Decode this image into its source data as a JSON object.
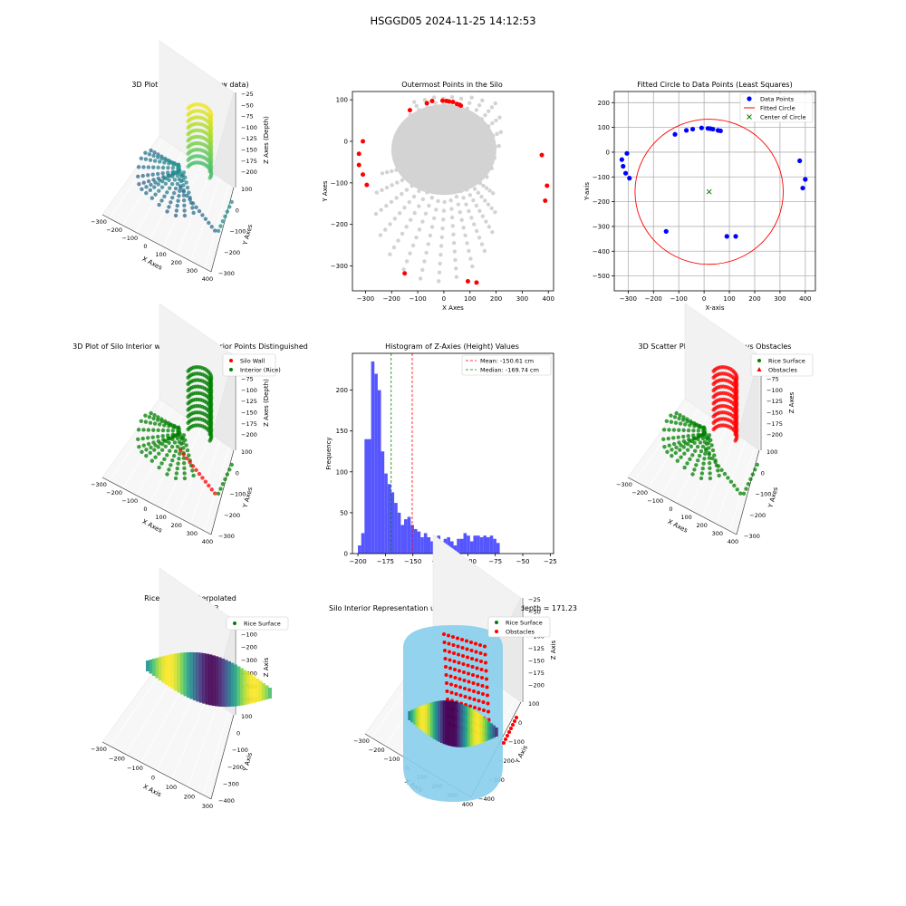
{
  "suptitle": "HSGGD05 2024-11-25 14:12:53",
  "colors": {
    "blue": "#0000ff",
    "red": "#ff0000",
    "green": "#008000",
    "gray": "#d3d3d3",
    "hist_blue": "#4d4dff",
    "sky": "#87ceeb"
  },
  "chart_data": [
    {
      "type": "scatter3d",
      "title": "3D Plot of Silo Interior(row data)",
      "xlabel": "X Axes",
      "ylabel": "Y Axes",
      "zlabel": "Z Axes (Depth)",
      "xticks": [
        "−300",
        "−200",
        "−100",
        "0",
        "100",
        "200",
        "300",
        "400"
      ],
      "yticks": [
        "100",
        "0",
        "−100",
        "−200",
        "−300"
      ],
      "zticks": [
        "−25",
        "−50",
        "−75",
        "−100",
        "−125",
        "−150",
        "−175",
        "−200"
      ],
      "colormap": "viridis",
      "legend": []
    },
    {
      "type": "scatter",
      "title": "Outermost Points in the Silo",
      "xlabel": "X Axes",
      "ylabel": "Y Axes",
      "xlim": [
        -350,
        420
      ],
      "ylim": [
        -360,
        120
      ],
      "xticks": [
        -300,
        -200,
        -100,
        0,
        100,
        200,
        300,
        400
      ],
      "yticks": [
        100,
        0,
        -100,
        -200,
        -300
      ],
      "outer_points": [
        [
          -130,
          75
        ],
        [
          -65,
          92
        ],
        [
          -45,
          97
        ],
        [
          -5,
          98
        ],
        [
          10,
          97
        ],
        [
          20,
          96
        ],
        [
          35,
          95
        ],
        [
          50,
          90
        ],
        [
          60,
          88
        ],
        [
          65,
          86
        ],
        [
          -310,
          0
        ],
        [
          -325,
          -30
        ],
        [
          -325,
          -57
        ],
        [
          -310,
          -80
        ],
        [
          -295,
          -105
        ],
        [
          -150,
          -318
        ],
        [
          92,
          -337
        ],
        [
          125,
          -340
        ],
        [
          375,
          -33
        ],
        [
          395,
          -107
        ],
        [
          388,
          -143
        ]
      ]
    },
    {
      "type": "scatter",
      "title": "Fitted Circle to Data Points (Least Squares)",
      "xlabel": "X-axis",
      "ylabel": "Y-axis",
      "xlim": [
        -355,
        440
      ],
      "ylim": [
        -560,
        245
      ],
      "xticks": [
        -300,
        -200,
        -100,
        0,
        100,
        200,
        300,
        400
      ],
      "yticks": [
        200,
        100,
        0,
        -100,
        -200,
        -300,
        -400,
        -500
      ],
      "grid": true,
      "legend": [
        "Data Points",
        "Fitted Circle",
        "Center of Circle"
      ],
      "legend_position": "top-right",
      "data_points": [
        [
          -115,
          72
        ],
        [
          -70,
          88
        ],
        [
          -45,
          93
        ],
        [
          -10,
          98
        ],
        [
          15,
          96
        ],
        [
          25,
          95
        ],
        [
          35,
          93
        ],
        [
          55,
          88
        ],
        [
          65,
          86
        ],
        [
          -305,
          -5
        ],
        [
          -325,
          -30
        ],
        [
          -320,
          -57
        ],
        [
          -310,
          -85
        ],
        [
          -295,
          -105
        ],
        [
          -150,
          -320
        ],
        [
          90,
          -340
        ],
        [
          125,
          -340
        ],
        [
          378,
          -35
        ],
        [
          390,
          -145
        ],
        [
          400,
          -110
        ]
      ],
      "circle": {
        "cx": 20,
        "cy": -160,
        "r": 293
      },
      "center": [
        20,
        -160
      ]
    },
    {
      "type": "scatter3d",
      "title": "3D Plot of Silo Interior with Wall and Interior Points Distinguished",
      "xlabel": "X Axes",
      "ylabel": "Y Axes",
      "zlabel": "Z Axes (Depth)",
      "xticks": [
        "−300",
        "−200",
        "−100",
        "0",
        "100",
        "200",
        "300",
        "400"
      ],
      "yticks": [
        "100",
        "0",
        "−100",
        "−200",
        "−300"
      ],
      "zticks": [
        "−25",
        "−50",
        "−75",
        "−100",
        "−125",
        "−150",
        "−175",
        "−200"
      ],
      "legend": [
        "Silo Wall",
        "Interior (Rice)"
      ],
      "legend_position": "top-right"
    },
    {
      "type": "bar",
      "title": "Histogram of Z-Axies (Height) Values",
      "xlabel": "Height (cm)",
      "ylabel": "Frequency",
      "xlim": [
        -205,
        -22
      ],
      "ylim": [
        0,
        245
      ],
      "xticks": [
        -200,
        -175,
        -150,
        -125,
        -100,
        -75,
        -50,
        -25
      ],
      "yticks": [
        0,
        50,
        100,
        150,
        200
      ],
      "bin_start": -200,
      "bin_width": 3,
      "values": [
        10,
        25,
        140,
        140,
        235,
        220,
        200,
        125,
        98,
        85,
        75,
        62,
        50,
        35,
        42,
        45,
        35,
        30,
        27,
        20,
        25,
        20,
        15,
        20,
        22,
        15,
        18,
        20,
        15,
        10,
        18,
        18,
        25,
        22,
        15,
        22,
        22,
        20,
        22,
        20,
        22,
        18,
        13
      ],
      "legend": [
        "Mean: -150.61 cm",
        "Median: -169.74 cm"
      ],
      "legend_position": "top-right",
      "mean": -150.61,
      "median": -169.74
    },
    {
      "type": "scatter3d",
      "title": "3D Scatter Plot: Rice Surface vs Obstacles",
      "xlabel": "X Axes",
      "ylabel": "Y Axes",
      "zlabel": "Z Axes",
      "xticks": [
        "−300",
        "−200",
        "−100",
        "0",
        "100",
        "200",
        "300",
        "400"
      ],
      "yticks": [
        "100",
        "0",
        "−100",
        "−200",
        "−300"
      ],
      "zticks": [
        "−25",
        "−50",
        "−75",
        "−100",
        "−125",
        "−150",
        "−175",
        "−200"
      ],
      "legend": [
        "Rice Surface",
        "Obstacles"
      ],
      "legend_position": "top-right"
    },
    {
      "type": "surface3d",
      "title": "Rice Surface Interpolated",
      "subtitle": "depth = 171.23",
      "xlabel": "X Axis",
      "ylabel": "Y Axis",
      "zlabel": "Z Axis",
      "xticks": [
        "−300",
        "−200",
        "−100",
        "0",
        "100",
        "200",
        "300"
      ],
      "yticks": [
        "100",
        "0",
        "−100",
        "−200",
        "−300",
        "−400"
      ],
      "zticks": [
        "0",
        "−100",
        "−200",
        "−300",
        "−400",
        "−500",
        "−600"
      ],
      "legend": [
        "Rice Surface"
      ],
      "legend_position": "top-right"
    },
    {
      "type": "surface3d",
      "title": "Silo Interior Representation using weighted average depth = 171.23",
      "xlabel": "X Axis",
      "ylabel": "Y Axis",
      "zlabel": "Z Axis",
      "xticks": [
        "−300",
        "−200",
        "−100",
        "0",
        "100",
        "200",
        "300",
        "400"
      ],
      "yticks": [
        "100",
        "0",
        "−100",
        "−200",
        "−300",
        "−400"
      ],
      "zticks": [
        "−25",
        "−50",
        "−75",
        "−100",
        "−125",
        "−150",
        "−175",
        "−200"
      ],
      "legend": [
        "Rice Surface",
        "Obstacles"
      ],
      "legend_position": "top-center"
    }
  ]
}
